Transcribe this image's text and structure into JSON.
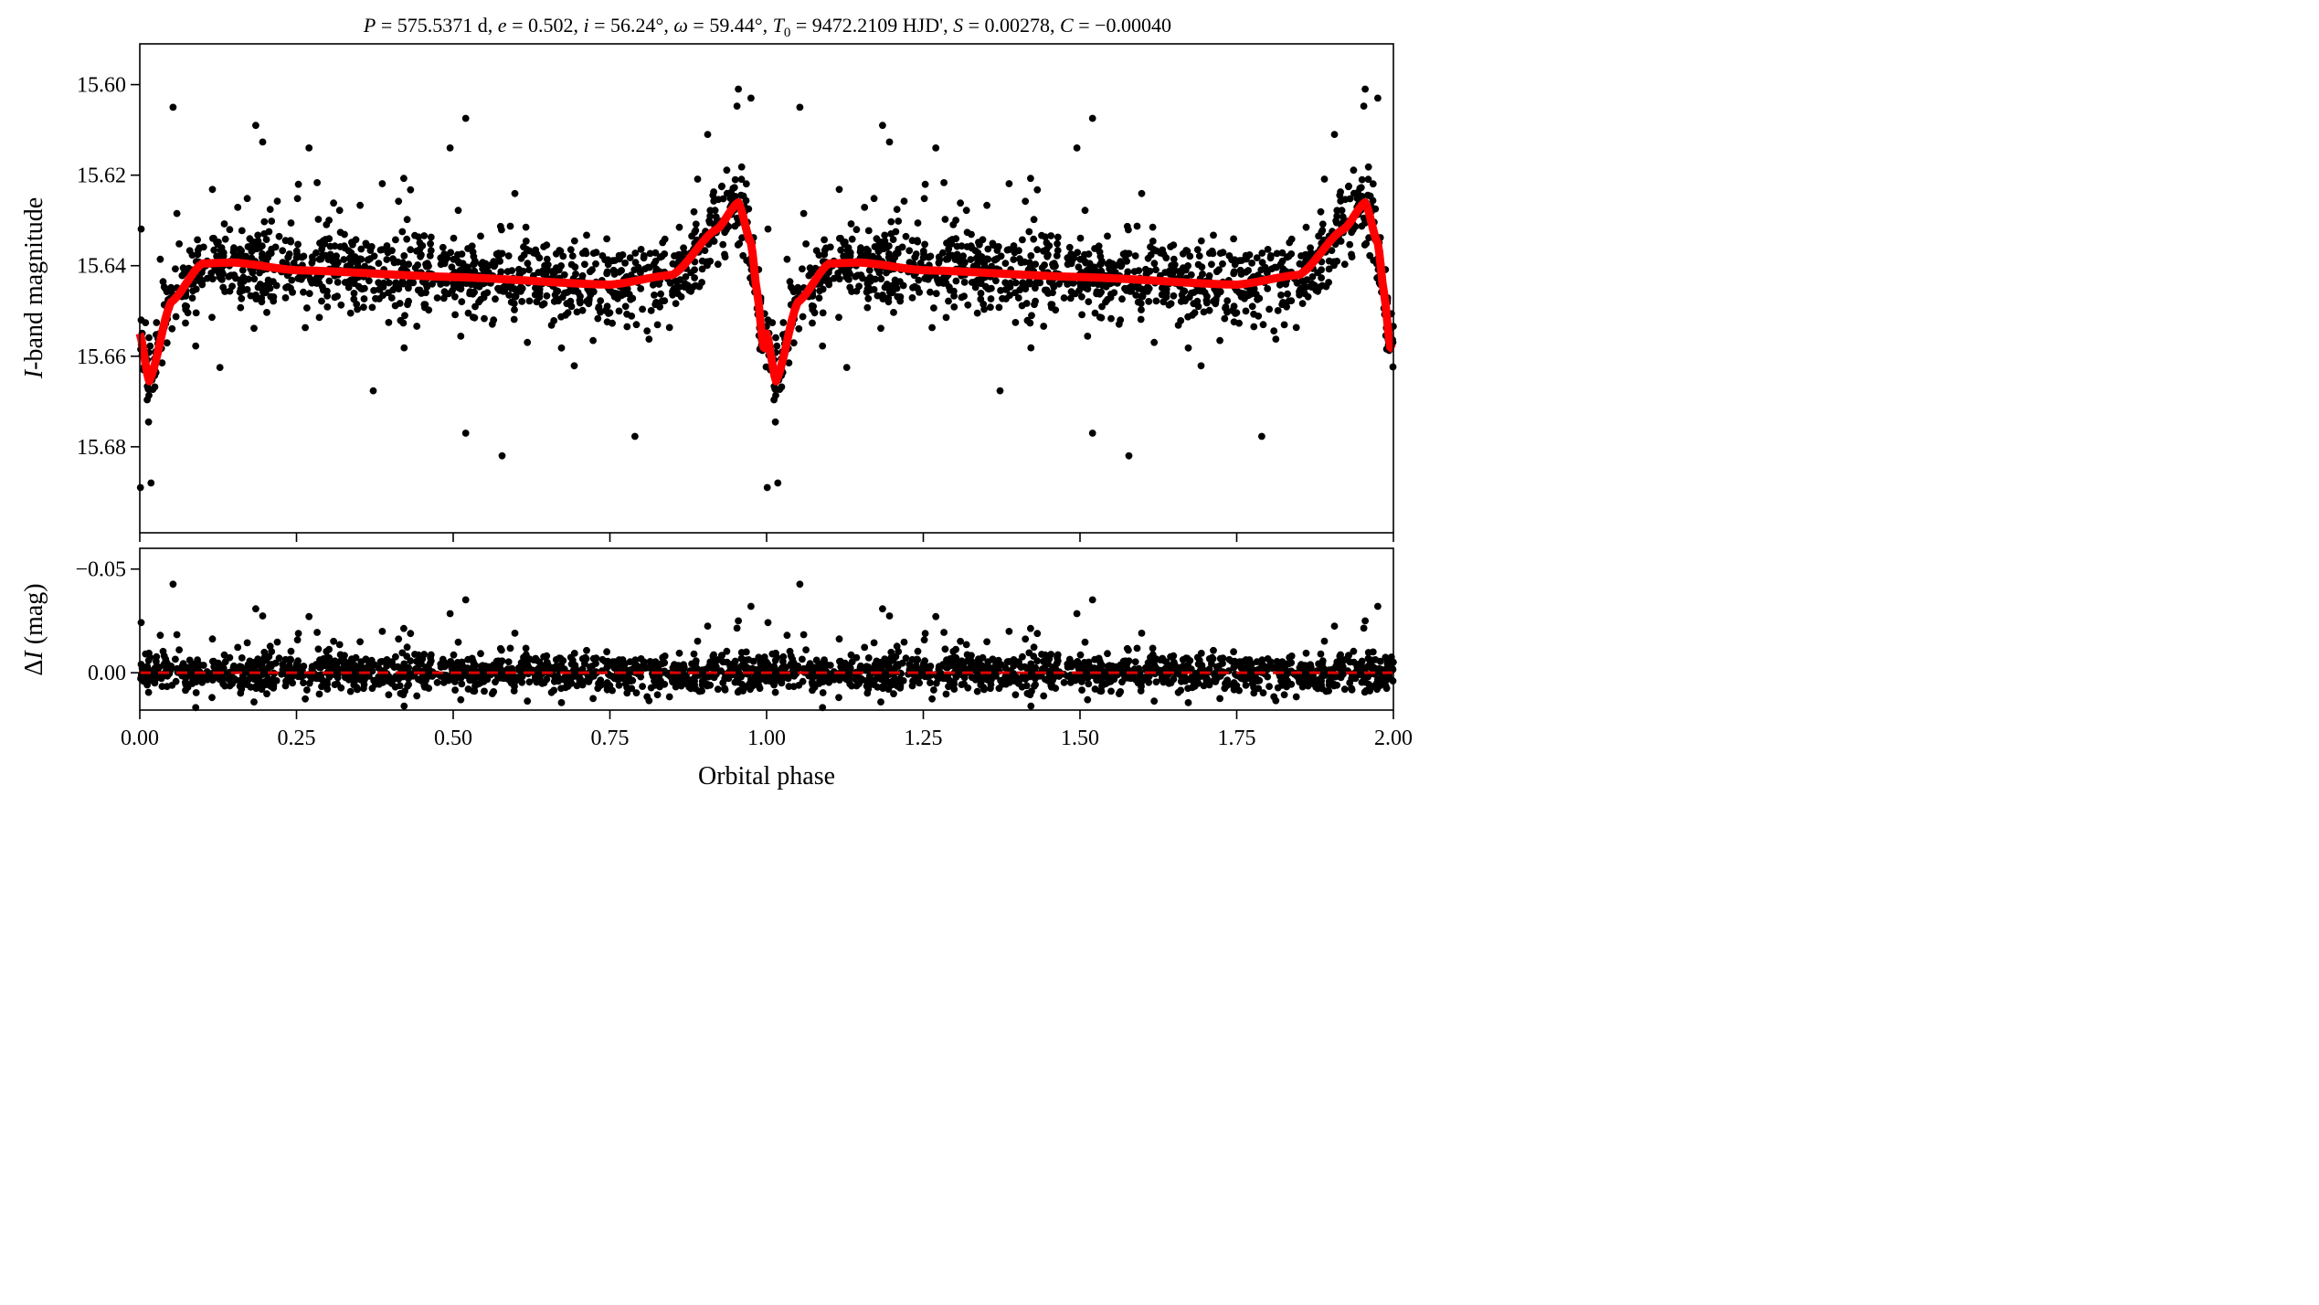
{
  "chart_data": {
    "type": "scatter",
    "title": "P = 575.5371 d, e = 0.502, i = 56.24°, ω = 59.44°, T0 = 9472.2109 HJD', S = 0.00278, C = −0.00040",
    "title_parts": {
      "P_sym": "P",
      "P_val": "575.5371 d,",
      "e_sym": "e",
      "e_val": "0.502,",
      "i_sym": "i",
      "i_val": "56.24°,",
      "w_sym": "ω",
      "w_val": "59.44°,",
      "T_sym": "T",
      "T_sub": "0",
      "T_val": "9472.2109 HJD',",
      "S_sym": "S",
      "S_val": "0.00278,",
      "C_sym": "C",
      "C_val": "−0.00040"
    },
    "xlabel": "Orbital phase",
    "xlim": [
      0,
      2
    ],
    "xticks": [
      "0.00",
      "0.25",
      "0.50",
      "0.75",
      "1.00",
      "1.25",
      "1.50",
      "1.75",
      "2.00"
    ],
    "top_panel": {
      "ylabel_italic": "I",
      "ylabel_rest": "-band magnitude",
      "ylim": [
        15.699,
        15.591
      ],
      "yticks": [
        "15.60",
        "15.62",
        "15.64",
        "15.66",
        "15.68"
      ],
      "ytick_values": [
        15.6,
        15.62,
        15.64,
        15.66,
        15.68
      ],
      "series": [
        {
          "name": "Observations",
          "kind": "points",
          "color": "#000000",
          "n_per_cycle": 1180,
          "scatter_sigma": 0.0075
        },
        {
          "name": "Orbital model",
          "kind": "line",
          "color": "#ff0000"
        }
      ],
      "model_params": {
        "P_days": 575.5371,
        "e": 0.502,
        "i_deg": 56.24,
        "omega_deg": 59.44,
        "S": 0.00278,
        "C": -0.0004
      },
      "model_curve": {
        "phase": [
          0.0,
          0.015,
          0.05,
          0.1,
          0.15,
          0.25,
          0.5,
          0.75,
          0.85,
          0.92,
          0.955,
          0.975,
          0.985,
          0.995,
          1.0
        ],
        "mag": [
          15.655,
          15.6655,
          15.648,
          15.6395,
          15.6393,
          15.641,
          15.6425,
          15.6442,
          15.642,
          15.632,
          15.626,
          15.635,
          15.646,
          15.658,
          15.6585
        ]
      },
      "outliers": [
        {
          "phase": 0.053,
          "mag": 15.605
        },
        {
          "phase": 0.185,
          "mag": 15.609
        },
        {
          "phase": 0.955,
          "mag": 15.601
        },
        {
          "phase": 0.975,
          "mag": 15.603
        },
        {
          "phase": 0.001,
          "mag": 15.689
        },
        {
          "phase": 0.018,
          "mag": 15.688
        },
        {
          "phase": 0.578,
          "mag": 15.682
        },
        {
          "phase": 0.52,
          "mag": 15.677
        },
        {
          "phase": 0.906,
          "mag": 15.611
        },
        {
          "phase": 0.495,
          "mag": 15.614
        },
        {
          "phase": 0.27,
          "mag": 15.614
        }
      ]
    },
    "bottom_panel": {
      "ylabel_delta": "Δ",
      "ylabel_italic": "I",
      "ylabel_rest": " (mag)",
      "ylim": [
        0.018,
        -0.06
      ],
      "yticks": [
        "−0.05",
        "0.00"
      ],
      "ytick_values": [
        -0.05,
        0.0
      ],
      "reference_line": {
        "value": 0.0,
        "color": "#e00000",
        "style": "dashed"
      },
      "residual_sigma": 0.0055
    }
  }
}
